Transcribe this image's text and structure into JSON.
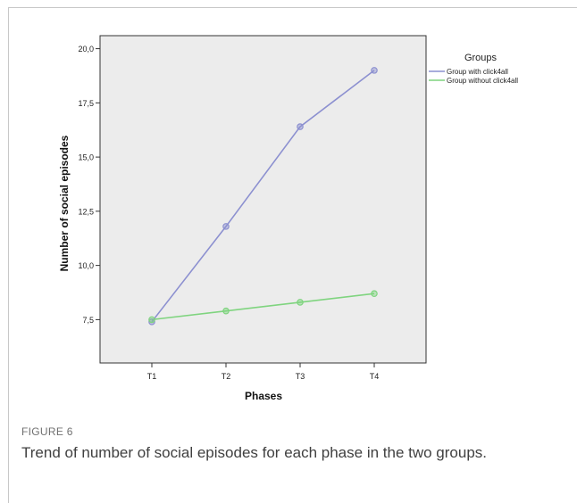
{
  "chart_data": {
    "type": "line",
    "categories": [
      "T1",
      "T2",
      "T3",
      "T4"
    ],
    "xlabel": "Phases",
    "ylabel": "Number of social episodes",
    "ylim": [
      5.5,
      20.6
    ],
    "yticks": [
      7.5,
      10.0,
      12.5,
      15.0,
      17.5,
      20.0
    ],
    "ytick_labels": [
      "7,5",
      "10,0",
      "12,5",
      "15,0",
      "17,5",
      "20,0"
    ],
    "legend": {
      "title": "Groups",
      "position": "top-right"
    },
    "grid": false,
    "series": [
      {
        "name": "Group with click4all",
        "color": "#8c90d0",
        "values": [
          7.4,
          11.8,
          16.4,
          19.0
        ]
      },
      {
        "name": "Group without click4all",
        "color": "#7fd47f",
        "values": [
          7.5,
          7.9,
          8.3,
          8.7
        ]
      }
    ]
  },
  "caption": {
    "label": "FIGURE 6",
    "text": "Trend of number of social episodes for each phase in the two groups."
  }
}
